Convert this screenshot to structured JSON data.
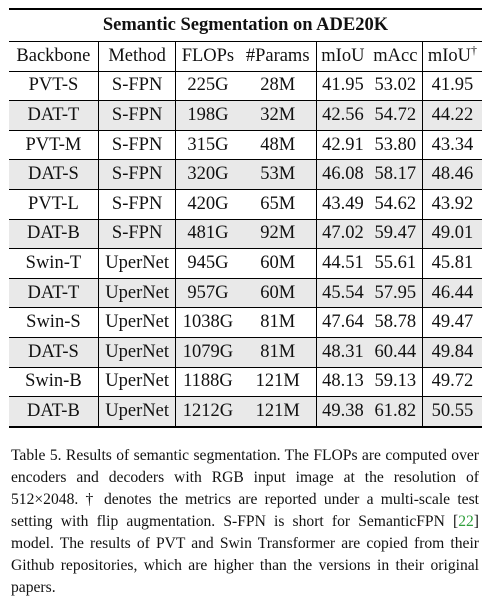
{
  "table": {
    "title": "Semantic Segmentation on ADE20K",
    "headers": [
      "Backbone",
      "Method",
      "FLOPs",
      "#Params",
      "mIoU",
      "mAcc",
      "mIoU"
    ],
    "dagger": "†",
    "rows": [
      {
        "backbone": "PVT-S",
        "method": "S-FPN",
        "flops": "225G",
        "params": "28M",
        "miou": "41.95",
        "macc": "53.02",
        "miou_ms": "41.95",
        "ours": false,
        "best": false
      },
      {
        "backbone": "DAT-T",
        "method": "S-FPN",
        "flops": "198G",
        "params": "32M",
        "miou": "42.56",
        "macc": "54.72",
        "miou_ms": "44.22",
        "ours": true,
        "best": true
      },
      {
        "backbone": "PVT-M",
        "method": "S-FPN",
        "flops": "315G",
        "params": "48M",
        "miou": "42.91",
        "macc": "53.80",
        "miou_ms": "43.34",
        "ours": false,
        "best": false
      },
      {
        "backbone": "DAT-S",
        "method": "S-FPN",
        "flops": "320G",
        "params": "53M",
        "miou": "46.08",
        "macc": "58.17",
        "miou_ms": "48.46",
        "ours": true,
        "best": true
      },
      {
        "backbone": "PVT-L",
        "method": "S-FPN",
        "flops": "420G",
        "params": "65M",
        "miou": "43.49",
        "macc": "54.62",
        "miou_ms": "43.92",
        "ours": false,
        "best": false
      },
      {
        "backbone": "DAT-B",
        "method": "S-FPN",
        "flops": "481G",
        "params": "92M",
        "miou": "47.02",
        "macc": "59.47",
        "miou_ms": "49.01",
        "ours": true,
        "best": true
      },
      {
        "backbone": "Swin-T",
        "method": "UperNet",
        "flops": "945G",
        "params": "60M",
        "miou": "44.51",
        "macc": "55.61",
        "miou_ms": "45.81",
        "ours": false,
        "best": false
      },
      {
        "backbone": "DAT-T",
        "method": "UperNet",
        "flops": "957G",
        "params": "60M",
        "miou": "45.54",
        "macc": "57.95",
        "miou_ms": "46.44",
        "ours": true,
        "best": true
      },
      {
        "backbone": "Swin-S",
        "method": "UperNet",
        "flops": "1038G",
        "params": "81M",
        "miou": "47.64",
        "macc": "58.78",
        "miou_ms": "49.47",
        "ours": false,
        "best": false
      },
      {
        "backbone": "DAT-S",
        "method": "UperNet",
        "flops": "1079G",
        "params": "81M",
        "miou": "48.31",
        "macc": "60.44",
        "miou_ms": "49.84",
        "ours": true,
        "best": true
      },
      {
        "backbone": "Swin-B",
        "method": "UperNet",
        "flops": "1188G",
        "params": "121M",
        "miou": "48.13",
        "macc": "59.13",
        "miou_ms": "49.72",
        "ours": false,
        "best": false
      },
      {
        "backbone": "DAT-B",
        "method": "UperNet",
        "flops": "1212G",
        "params": "121M",
        "miou": "49.38",
        "macc": "61.82",
        "miou_ms": "50.55",
        "ours": true,
        "best": true
      }
    ]
  },
  "caption": {
    "before_cite": "Table 5. Results of semantic segmentation. The FLOPs are computed over encoders and decoders with RGB input image at the resolution of 512×2048. † denotes the metrics are reported under a multi-scale test setting with flip augmentation. S-FPN is short for SemanticFPN [",
    "cite": "22",
    "after_cite": "] model. The results of PVT and Swin Transformer are copied from their Github repositories, which are higher than the versions in their original papers.",
    "cite_color": "#2e9e3a"
  }
}
